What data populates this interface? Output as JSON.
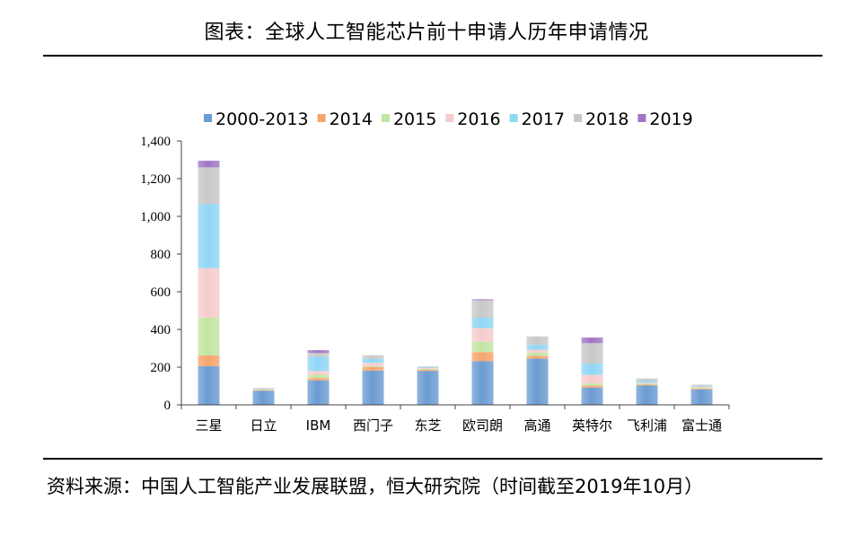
{
  "header": {
    "title": "图表：全球人工智能芯片前十申请人历年申请情况"
  },
  "source": {
    "text": "资料来源：中国人工智能产业发展联盟，恒大研究院（时间截至2019年10月）"
  },
  "chart_data": {
    "type": "bar",
    "stacked": true,
    "title": "",
    "xlabel": "",
    "ylabel": "",
    "ylim": [
      0,
      1400
    ],
    "ytick_step": 200,
    "ytick_labels": [
      "0",
      "200",
      "400",
      "600",
      "800",
      "1,000",
      "1,200",
      "1,400"
    ],
    "grid": false,
    "legend_position": "top-center",
    "categories": [
      "三星",
      "日立",
      "IBM",
      "西门子",
      "东芝",
      "欧司朗",
      "高通",
      "英特尔",
      "飞利浦",
      "富士通"
    ],
    "series": [
      {
        "name": "2000-2013",
        "color": "#6b9bd2",
        "values": [
          205,
          75,
          130,
          182,
          180,
          232,
          245,
          92,
          103,
          82
        ]
      },
      {
        "name": "2014",
        "color": "#f5a46c",
        "values": [
          58,
          3,
          12,
          18,
          6,
          48,
          15,
          10,
          5,
          5
        ]
      },
      {
        "name": "2015",
        "color": "#c2e5a1",
        "values": [
          200,
          3,
          18,
          5,
          4,
          55,
          18,
          12,
          5,
          5
        ]
      },
      {
        "name": "2016",
        "color": "#f5cccc",
        "values": [
          262,
          3,
          20,
          18,
          5,
          72,
          15,
          45,
          5,
          5
        ]
      },
      {
        "name": "2017",
        "color": "#8fd6f5",
        "values": [
          340,
          3,
          75,
          20,
          4,
          55,
          25,
          60,
          10,
          5
        ]
      },
      {
        "name": "2018",
        "color": "#c8c8c8",
        "values": [
          195,
          3,
          20,
          20,
          5,
          93,
          45,
          108,
          12,
          5
        ]
      },
      {
        "name": "2019",
        "color": "#9f76c4",
        "values": [
          35,
          0,
          15,
          0,
          0,
          5,
          0,
          30,
          0,
          0
        ]
      }
    ]
  }
}
